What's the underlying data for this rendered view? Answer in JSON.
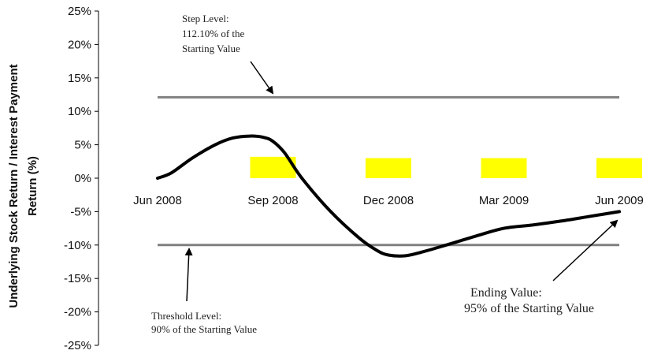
{
  "chart_data": {
    "type": "line",
    "title": "",
    "ylabel_lines": [
      "Underlying Stock Return / Interest Payment",
      "Return (%)"
    ],
    "xlabel": "",
    "ylim": [
      -25,
      25
    ],
    "y_ticks": [
      "25%",
      "20%",
      "15%",
      "10%",
      "5%",
      "0%",
      "-5%",
      "-10%",
      "-15%",
      "-20%",
      "-25%"
    ],
    "y_tick_values": [
      25,
      20,
      15,
      10,
      5,
      0,
      -5,
      -10,
      -15,
      -20,
      -25
    ],
    "x_categories": [
      "Jun 2008",
      "Sep 2008",
      "Dec 2008",
      "Mar 2009",
      "Jun 2009"
    ],
    "grid": false,
    "series": [
      {
        "type": "line",
        "color": "#000000",
        "x": [
          0,
          0.12,
          0.3,
          0.5,
          0.65,
          0.8,
          0.92,
          1.0,
          1.1,
          1.25,
          1.5,
          1.75,
          1.9,
          2.0,
          2.15,
          2.3,
          2.5,
          2.75,
          3.0,
          3.25,
          3.5,
          3.75,
          4.0
        ],
        "y": [
          0,
          0.8,
          3.0,
          5.0,
          6.0,
          6.3,
          6.1,
          5.5,
          3.8,
          0.0,
          -5.0,
          -9.0,
          -10.8,
          -11.5,
          -11.6,
          -11.0,
          -10.0,
          -8.7,
          -7.5,
          -7.0,
          -6.4,
          -5.7,
          -5.0
        ]
      },
      {
        "type": "bar",
        "color": "#ffff00",
        "x": [
          1,
          2,
          3,
          4
        ],
        "values": [
          3.2,
          3.0,
          3.0,
          3.0
        ]
      }
    ],
    "reference_lines": [
      {
        "y": 12.1,
        "color": "#808080"
      },
      {
        "y": -10.0,
        "color": "#808080"
      }
    ],
    "annotations": [
      {
        "lines": [
          "Step Level:",
          "112.10% of the",
          "Starting Value"
        ]
      },
      {
        "lines": [
          "Threshold Level:",
          "90% of the Starting Value"
        ]
      },
      {
        "lines": [
          "Ending Value:",
          "95% of the Starting Value"
        ]
      }
    ]
  }
}
